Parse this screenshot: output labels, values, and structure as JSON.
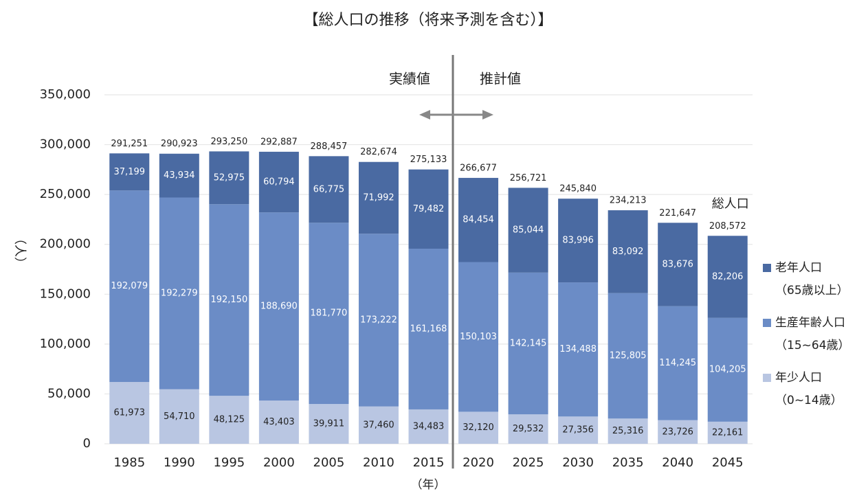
{
  "chart_data": {
    "type": "stacked-bar",
    "title": "【総人口の推移（将来予測を含む）】",
    "y_label": "（人）",
    "x_label": "（年）",
    "annotations": {
      "left": "実績値",
      "right": "推計値"
    },
    "categories": [
      "1985",
      "1990",
      "1995",
      "2000",
      "2005",
      "2010",
      "2015",
      "2020",
      "2025",
      "2030",
      "2035",
      "2040",
      "2045"
    ],
    "series": [
      {
        "name": "年少人口",
        "name_sub": "（0~14歳）",
        "color": "#b9c6e2",
        "label_color": "#222222",
        "values": [
          61973,
          54710,
          48125,
          43403,
          39911,
          37460,
          34483,
          32120,
          29532,
          27356,
          25316,
          23726,
          22161
        ],
        "value_labels": [
          "61,973",
          "54,710",
          "48,125",
          "43,403",
          "39,911",
          "37,460",
          "34,483",
          "32,120",
          "29,532",
          "27,356",
          "25,316",
          "23,726",
          "22,161"
        ]
      },
      {
        "name": "生産年齢人口",
        "name_sub": "（15~64歳）",
        "color": "#6b8cc6",
        "label_color": "#ffffff",
        "values": [
          192079,
          192279,
          192150,
          188690,
          181770,
          173222,
          161168,
          150103,
          142145,
          134488,
          125805,
          114245,
          104205
        ],
        "value_labels": [
          "192,079",
          "192,279",
          "192,150",
          "188,690",
          "181,770",
          "173,222",
          "161,168",
          "150,103",
          "142,145",
          "134,488",
          "125,805",
          "114,245",
          "104,205"
        ]
      },
      {
        "name": "老年人口",
        "name_sub": "（65歳以上）",
        "color": "#4a6aa2",
        "label_color": "#ffffff",
        "values": [
          37199,
          43934,
          52975,
          60794,
          66775,
          71992,
          79482,
          84454,
          85044,
          83996,
          83092,
          83676,
          82206
        ],
        "value_labels": [
          "37,199",
          "43,934",
          "52,975",
          "60,794",
          "66,775",
          "71,992",
          "79,482",
          "84,454",
          "85,044",
          "83,996",
          "83,092",
          "83,676",
          "82,206"
        ]
      }
    ],
    "totals": {
      "name": "総人口",
      "values": [
        291251,
        290923,
        293250,
        292887,
        288457,
        282674,
        275133,
        266677,
        256721,
        245840,
        234213,
        221647,
        208572
      ],
      "value_labels": [
        "291,251",
        "290,923",
        "293,250",
        "292,887",
        "288,457",
        "282,674",
        "275,133",
        "266,677",
        "256,721",
        "245,840",
        "234,213",
        "221,647",
        "208,572"
      ]
    },
    "ylim": [
      0,
      350000
    ],
    "yticks": [
      0,
      {
        "value": 50000,
        "label": "50,000"
      },
      {
        "value": 100000,
        "label": "100,000"
      },
      {
        "value": 150000,
        "label": "150,000"
      },
      {
        "value": 200000,
        "label": "200,000"
      },
      {
        "value": 250000,
        "label": "250,000"
      },
      {
        "value": 300000,
        "label": "300,000"
      },
      {
        "value": 350000,
        "label": "350,000"
      }
    ],
    "grid": true
  }
}
